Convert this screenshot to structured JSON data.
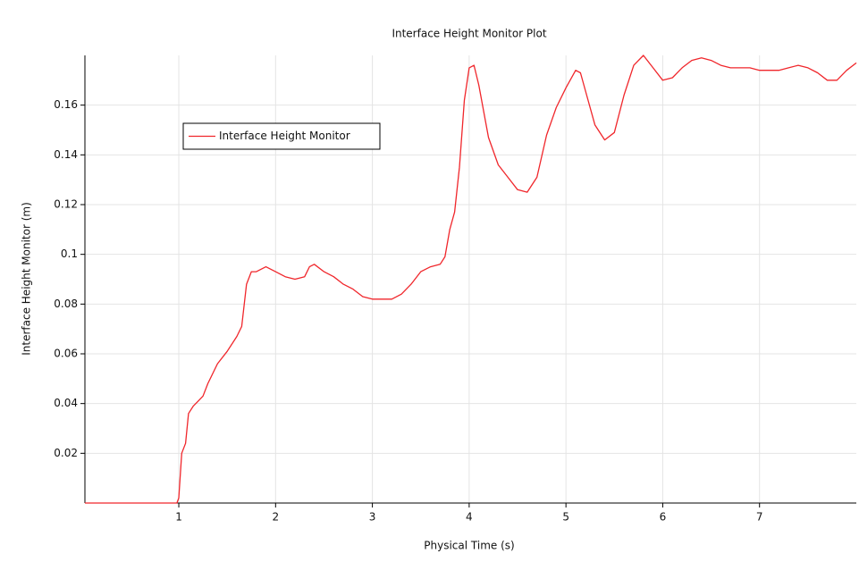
{
  "chart_data": {
    "type": "line",
    "title": "Interface Height Monitor Plot",
    "x_label": "Physical Time (s)",
    "y_label": "Interface Height Monitor (m)",
    "x": [
      0.03,
      0.5,
      0.98,
      1.0,
      1.03,
      1.07,
      1.1,
      1.15,
      1.2,
      1.25,
      1.3,
      1.4,
      1.5,
      1.6,
      1.65,
      1.7,
      1.75,
      1.8,
      1.9,
      2.0,
      2.1,
      2.2,
      2.3,
      2.35,
      2.4,
      2.5,
      2.6,
      2.7,
      2.8,
      2.9,
      3.0,
      3.1,
      3.2,
      3.3,
      3.4,
      3.5,
      3.6,
      3.7,
      3.75,
      3.8,
      3.85,
      3.9,
      3.95,
      4.0,
      4.05,
      4.1,
      4.2,
      4.3,
      4.4,
      4.5,
      4.6,
      4.7,
      4.8,
      4.9,
      5.0,
      5.1,
      5.15,
      5.2,
      5.3,
      5.4,
      5.5,
      5.6,
      5.7,
      5.8,
      5.9,
      6.0,
      6.1,
      6.2,
      6.3,
      6.4,
      6.5,
      6.6,
      6.7,
      6.8,
      6.9,
      7.0,
      7.1,
      7.2,
      7.3,
      7.4,
      7.5,
      7.6,
      7.7,
      7.8,
      7.9,
      8.0
    ],
    "series": [
      {
        "name": "Interface Height Monitor",
        "color": "#f0262b",
        "values": [
          0,
          0,
          0,
          0.002,
          0.02,
          0.024,
          0.036,
          0.039,
          0.041,
          0.043,
          0.048,
          0.056,
          0.061,
          0.067,
          0.071,
          0.088,
          0.093,
          0.093,
          0.095,
          0.093,
          0.091,
          0.09,
          0.091,
          0.095,
          0.096,
          0.093,
          0.091,
          0.088,
          0.086,
          0.083,
          0.082,
          0.082,
          0.082,
          0.084,
          0.088,
          0.093,
          0.095,
          0.096,
          0.099,
          0.11,
          0.117,
          0.135,
          0.162,
          0.175,
          0.176,
          0.168,
          0.147,
          0.136,
          0.131,
          0.126,
          0.125,
          0.131,
          0.148,
          0.159,
          0.167,
          0.174,
          0.173,
          0.166,
          0.152,
          0.146,
          0.149,
          0.164,
          0.176,
          0.18,
          0.175,
          0.17,
          0.171,
          0.175,
          0.178,
          0.179,
          0.178,
          0.176,
          0.175,
          0.175,
          0.175,
          0.174,
          0.174,
          0.174,
          0.175,
          0.176,
          0.175,
          0.173,
          0.17,
          0.17,
          0.174,
          0.177
        ]
      }
    ],
    "xlim": [
      0.03,
      8.0
    ],
    "ylim": [
      0,
      0.18
    ],
    "xticks": [
      1,
      2,
      3,
      4,
      5,
      6,
      7
    ],
    "yticks": [
      0.02,
      0.04,
      0.06,
      0.08,
      0.1,
      0.12,
      0.14,
      0.16
    ],
    "grid": true,
    "legend": "upper left"
  }
}
